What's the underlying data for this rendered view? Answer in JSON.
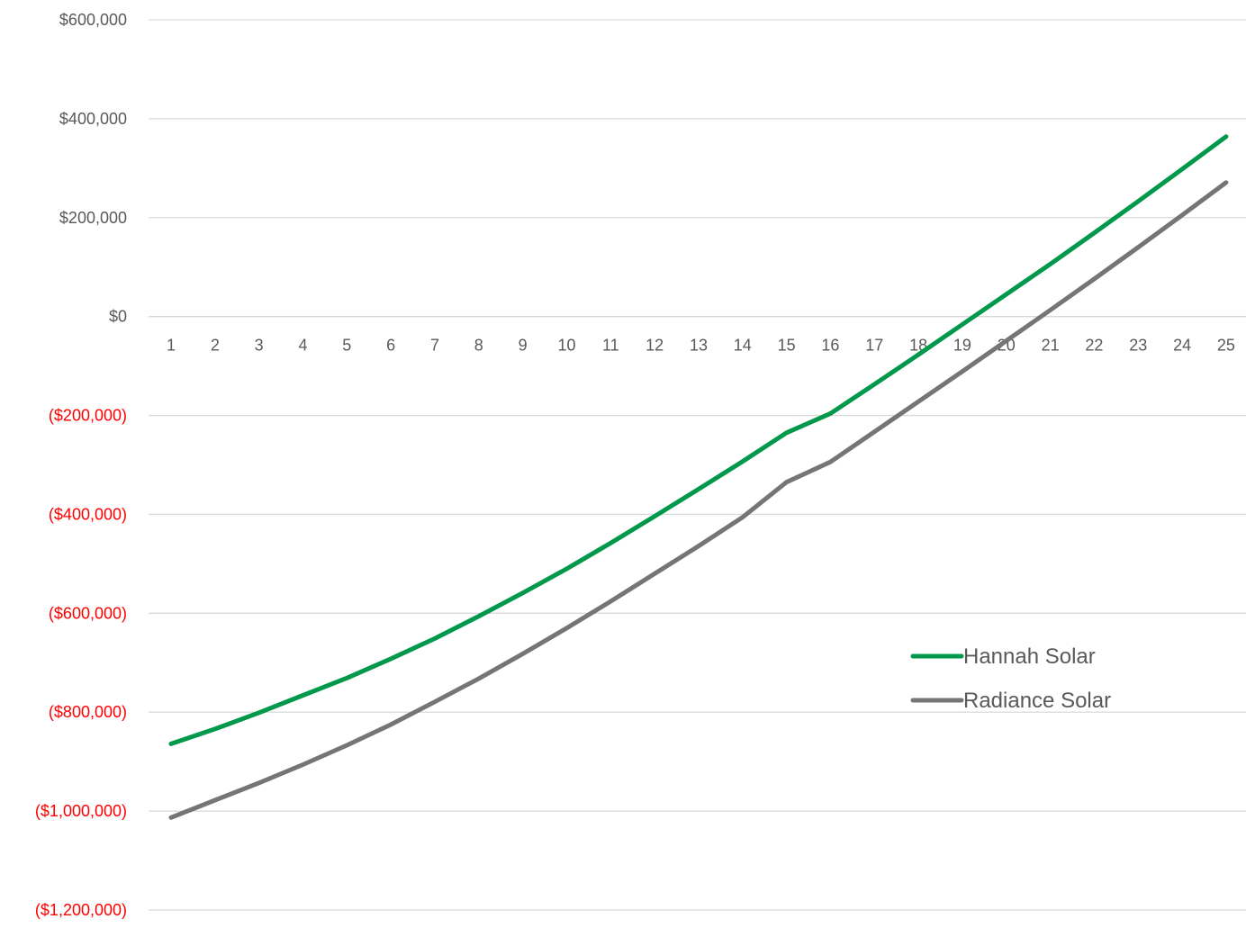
{
  "chart_data": {
    "type": "line",
    "title": "",
    "xlabel": "",
    "ylabel": "",
    "categories": [
      1,
      2,
      3,
      4,
      5,
      6,
      7,
      8,
      9,
      10,
      11,
      12,
      13,
      14,
      15,
      16,
      17,
      18,
      19,
      20,
      21,
      22,
      23,
      24,
      25
    ],
    "ylim": [
      -1200000,
      600000
    ],
    "yticks": [
      600000,
      400000,
      200000,
      0,
      -200000,
      -400000,
      -600000,
      -800000,
      -1000000,
      -1200000
    ],
    "ytick_labels": [
      "$600,000",
      "$400,000",
      "$200,000",
      "$0",
      "($200,000)",
      "($400,000)",
      "($600,000)",
      "($800,000)",
      "($1,000,000)",
      "($1,200,000)"
    ],
    "negative_label_color": "#ff0000",
    "positive_label_color": "#595959",
    "grid": true,
    "legend_position": "bottom-right",
    "series": [
      {
        "name": "Hannah Solar",
        "color": "#00984a",
        "values": [
          -864000,
          -834000,
          -801000,
          -766000,
          -731000,
          -692000,
          -651000,
          -606000,
          -559000,
          -510000,
          -458000,
          -404000,
          -349000,
          -293000,
          -235000,
          -196000,
          -137000,
          -77000,
          -16000,
          45000,
          106000,
          169000,
          233000,
          298000,
          364000
        ]
      },
      {
        "name": "Radiance Solar",
        "color": "#757575",
        "values": [
          -1013000,
          -978000,
          -943000,
          -906000,
          -867000,
          -825000,
          -779000,
          -732000,
          -682000,
          -630000,
          -576000,
          -520000,
          -464000,
          -406000,
          -335000,
          -294000,
          -233000,
          -172000,
          -111000,
          -49000,
          13000,
          76000,
          140000,
          205000,
          271000
        ]
      }
    ]
  }
}
